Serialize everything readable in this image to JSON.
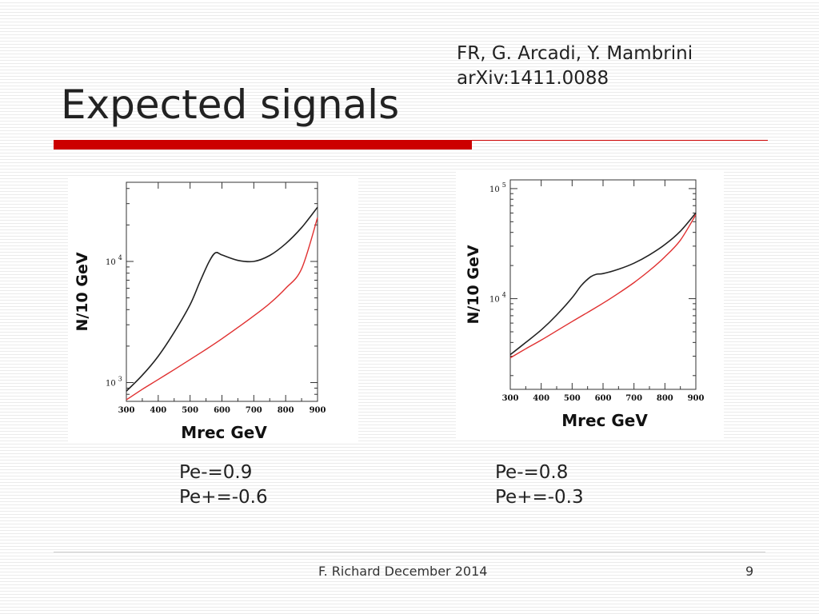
{
  "slide": {
    "title": "Expected signals",
    "reference": {
      "authors": "FR, G. Arcadi, Y. Mambrini",
      "arxiv": "arXiv:1411.0088"
    },
    "footer": "F. Richard December 2014",
    "page_number": "9",
    "accent_color": "#cc0000"
  },
  "chart_data": [
    {
      "type": "line",
      "xlabel": "Mrec  GeV",
      "ylabel": "N/10 GeV",
      "xlim": [
        300,
        900
      ],
      "ylim": [
        700,
        45000
      ],
      "y_scale": "log",
      "x_ticks": [
        "300",
        "400",
        "500",
        "600",
        "700",
        "800",
        "900"
      ],
      "y_ticks": [
        {
          "value": 1000,
          "base": "10",
          "exp": "3"
        },
        {
          "value": 10000,
          "base": "10",
          "exp": "4"
        }
      ],
      "series": [
        {
          "color": "#222222",
          "x": [
            300,
            350,
            400,
            450,
            500,
            530,
            560,
            580,
            600,
            650,
            700,
            750,
            800,
            850,
            900
          ],
          "y": [
            850,
            1150,
            1650,
            2600,
            4400,
            6700,
            10000,
            11800,
            11300,
            10200,
            10000,
            11200,
            14000,
            19000,
            28000
          ]
        },
        {
          "color": "#e03030",
          "x": [
            300,
            350,
            400,
            450,
            500,
            550,
            600,
            650,
            700,
            750,
            800,
            850,
            900
          ],
          "y": [
            720,
            880,
            1060,
            1280,
            1550,
            1880,
            2300,
            2850,
            3550,
            4500,
            6000,
            8700,
            23000
          ]
        }
      ],
      "caption": {
        "pe_minus": "Pe-=0.9",
        "pe_plus": "Pe+=-0.6"
      }
    },
    {
      "type": "line",
      "xlabel": "Mrec GeV",
      "ylabel": "N/10 GeV",
      "xlim": [
        300,
        900
      ],
      "ylim": [
        1500,
        120000
      ],
      "y_scale": "log",
      "x_ticks": [
        "300",
        "400",
        "500",
        "600",
        "700",
        "800",
        "900"
      ],
      "y_ticks": [
        {
          "value": 10000,
          "base": "10",
          "exp": "4"
        },
        {
          "value": 100000,
          "base": "10",
          "exp": "5"
        }
      ],
      "series": [
        {
          "color": "#222222",
          "x": [
            300,
            350,
            400,
            450,
            500,
            530,
            560,
            580,
            600,
            650,
            700,
            750,
            800,
            850,
            900
          ],
          "y": [
            3100,
            4000,
            5200,
            7100,
            10200,
            13200,
            15800,
            16700,
            16900,
            18500,
            21000,
            25000,
            31000,
            41000,
            60000
          ]
        },
        {
          "color": "#e03030",
          "x": [
            300,
            350,
            400,
            450,
            500,
            550,
            600,
            650,
            700,
            750,
            800,
            850,
            900
          ],
          "y": [
            2900,
            3500,
            4200,
            5100,
            6200,
            7500,
            9100,
            11200,
            14000,
            18000,
            24000,
            34000,
            58000
          ]
        }
      ],
      "caption": {
        "pe_minus": "Pe-=0.8",
        "pe_plus": "Pe+=-0.3"
      }
    }
  ]
}
